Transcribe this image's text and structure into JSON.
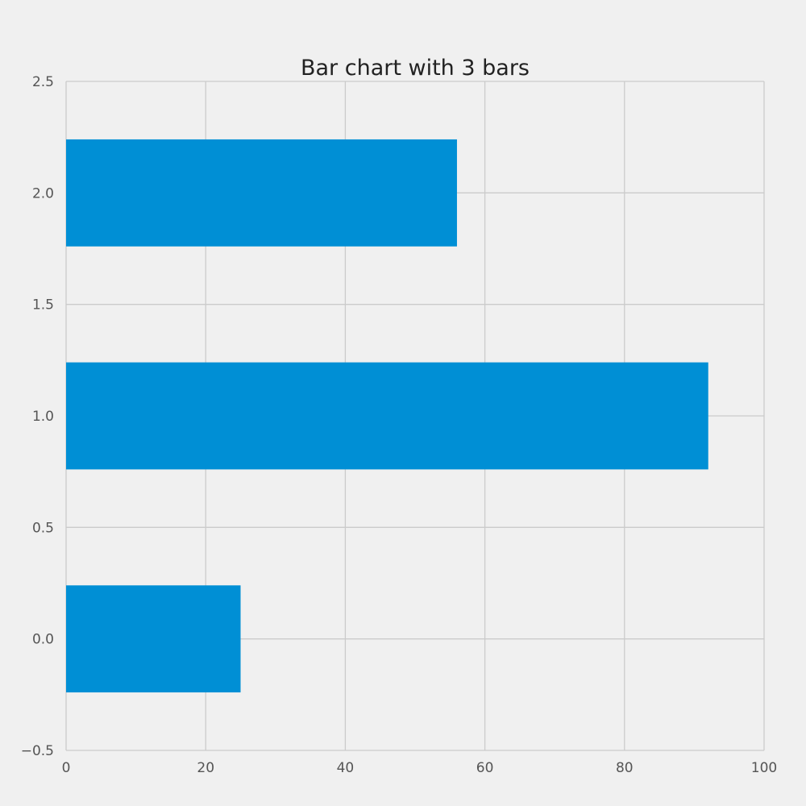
{
  "chart_data": {
    "type": "bar",
    "orientation": "horizontal",
    "title": "Bar chart with 3 bars",
    "xlabel": "",
    "ylabel": "",
    "positions": [
      0,
      1,
      2
    ],
    "values": [
      25,
      92,
      56
    ],
    "bar_height": 0.48,
    "xlim": [
      0,
      100
    ],
    "ylim": [
      -0.5,
      2.5
    ],
    "xticks": [
      0,
      20,
      40,
      60,
      80,
      100
    ],
    "xtick_labels": [
      "0",
      "20",
      "40",
      "60",
      "80",
      "100"
    ],
    "yticks": [
      -0.5,
      0.0,
      0.5,
      1.0,
      1.5,
      2.0,
      2.5
    ],
    "ytick_labels": [
      "−0.5",
      "0.0",
      "0.5",
      "1.0",
      "1.5",
      "2.0",
      "2.5"
    ],
    "grid": true,
    "bar_color": "#008fd5",
    "background_color": "#f0f0f0",
    "grid_color": "#cbcbcb"
  }
}
